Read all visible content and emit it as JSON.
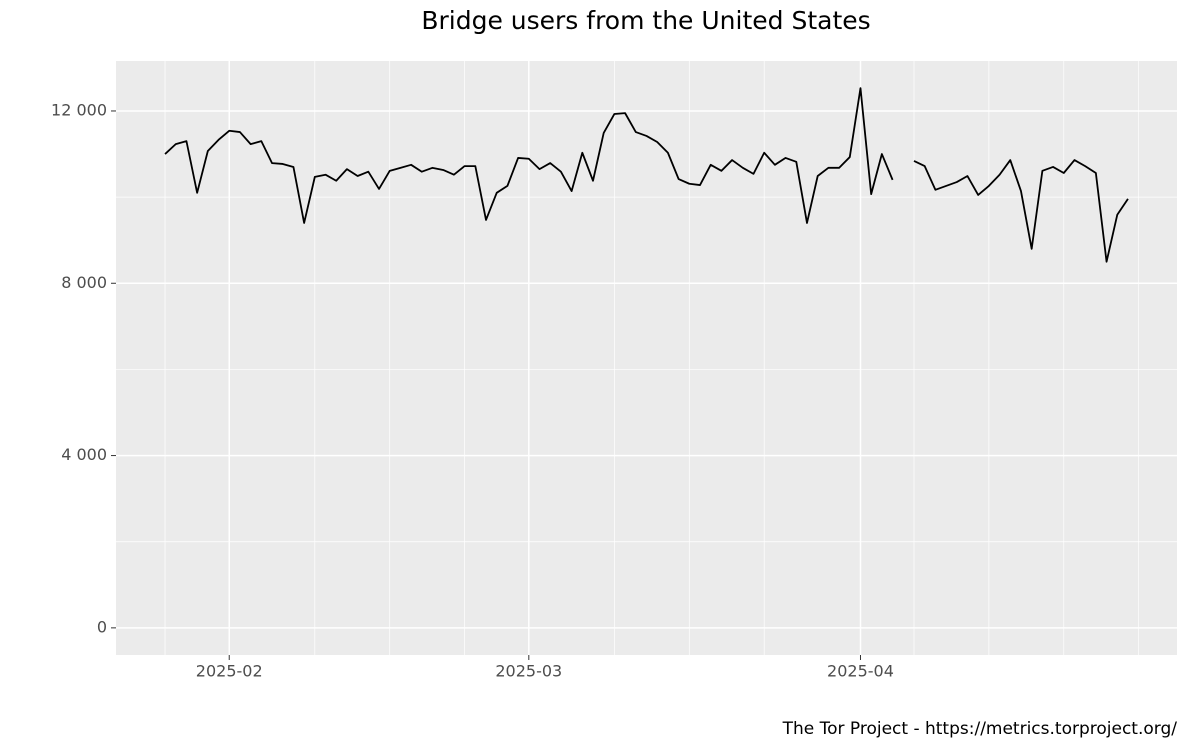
{
  "chart_data": {
    "type": "line",
    "title": "Bridge users from the United States",
    "caption": "The Tor Project - https://metrics.torproject.org/",
    "x": [
      "2025-01-26",
      "2025-01-27",
      "2025-01-28",
      "2025-01-29",
      "2025-01-30",
      "2025-01-31",
      "2025-02-01",
      "2025-02-02",
      "2025-02-03",
      "2025-02-04",
      "2025-02-05",
      "2025-02-06",
      "2025-02-07",
      "2025-02-08",
      "2025-02-09",
      "2025-02-10",
      "2025-02-11",
      "2025-02-12",
      "2025-02-13",
      "2025-02-14",
      "2025-02-15",
      "2025-02-16",
      "2025-02-17",
      "2025-02-18",
      "2025-02-19",
      "2025-02-20",
      "2025-02-21",
      "2025-02-22",
      "2025-02-23",
      "2025-02-24",
      "2025-02-25",
      "2025-02-26",
      "2025-02-27",
      "2025-02-28",
      "2025-03-01",
      "2025-03-02",
      "2025-03-03",
      "2025-03-04",
      "2025-03-05",
      "2025-03-06",
      "2025-03-07",
      "2025-03-08",
      "2025-03-09",
      "2025-03-10",
      "2025-03-11",
      "2025-03-12",
      "2025-03-13",
      "2025-03-14",
      "2025-03-15",
      "2025-03-16",
      "2025-03-17",
      "2025-03-18",
      "2025-03-19",
      "2025-03-20",
      "2025-03-21",
      "2025-03-22",
      "2025-03-23",
      "2025-03-24",
      "2025-03-25",
      "2025-03-26",
      "2025-03-27",
      "2025-03-28",
      "2025-03-29",
      "2025-03-30",
      "2025-03-31",
      "2025-04-01",
      "2025-04-02",
      "2025-04-03",
      "2025-04-04",
      "2025-04-05",
      "2025-04-06",
      "2025-04-07",
      "2025-04-08",
      "2025-04-09",
      "2025-04-10",
      "2025-04-11",
      "2025-04-12",
      "2025-04-13",
      "2025-04-14",
      "2025-04-15",
      "2025-04-16",
      "2025-04-17",
      "2025-04-18",
      "2025-04-19",
      "2025-04-20",
      "2025-04-21",
      "2025-04-22",
      "2025-04-23",
      "2025-04-24",
      "2025-04-25",
      "2025-04-26"
    ],
    "series": [
      {
        "color": "#000000",
        "values": [
          11000,
          11230,
          11300,
          10100,
          11070,
          11330,
          11540,
          11510,
          11230,
          11300,
          10790,
          10770,
          10700,
          9400,
          10470,
          10520,
          10380,
          10650,
          10490,
          10590,
          10190,
          10610,
          10680,
          10750,
          10590,
          10680,
          10630,
          10520,
          10720,
          10720,
          9470,
          10100,
          10260,
          10910,
          10890,
          10650,
          10790,
          10590,
          10140,
          11030,
          10380,
          11490,
          11930,
          11950,
          11510,
          11420,
          11280,
          11030,
          10420,
          10310,
          10280,
          10750,
          10610,
          10860,
          10680,
          10540,
          11030,
          10750,
          10910,
          10820,
          9400,
          10490,
          10680,
          10680,
          10930,
          12530,
          10070,
          11000,
          10400,
          null,
          10840,
          10720,
          10170,
          10260,
          10350,
          10490,
          10050,
          10260,
          10520,
          10860,
          10140,
          8800,
          10610,
          10700,
          10560,
          10860,
          10720,
          10560,
          8500,
          9590,
          9960
        ]
      }
    ],
    "xlim": [
      "2025-01-21T10:00",
      "2025-04-30T14:00"
    ],
    "xticks": [
      {
        "value": "2025-02-01",
        "label": "2025-02"
      },
      {
        "value": "2025-03-01",
        "label": "2025-03"
      },
      {
        "value": "2025-04-01",
        "label": "2025-04"
      }
    ],
    "x_minor_grid": [
      "2025-01-26",
      "2025-02-09",
      "2025-02-16",
      "2025-02-23",
      "2025-03-09",
      "2025-03-16",
      "2025-03-23",
      "2025-04-06",
      "2025-04-13",
      "2025-04-20",
      "2025-04-27"
    ],
    "ylim": [
      -630,
      13160
    ],
    "yticks": [
      0,
      {
        "value": 4000,
        "label": "4 000"
      },
      {
        "value": 8000,
        "label": "8 000"
      },
      {
        "value": 12000,
        "label": "12 000"
      }
    ],
    "y_minor_grid": [
      2000,
      6000,
      10000
    ],
    "grid": true
  }
}
